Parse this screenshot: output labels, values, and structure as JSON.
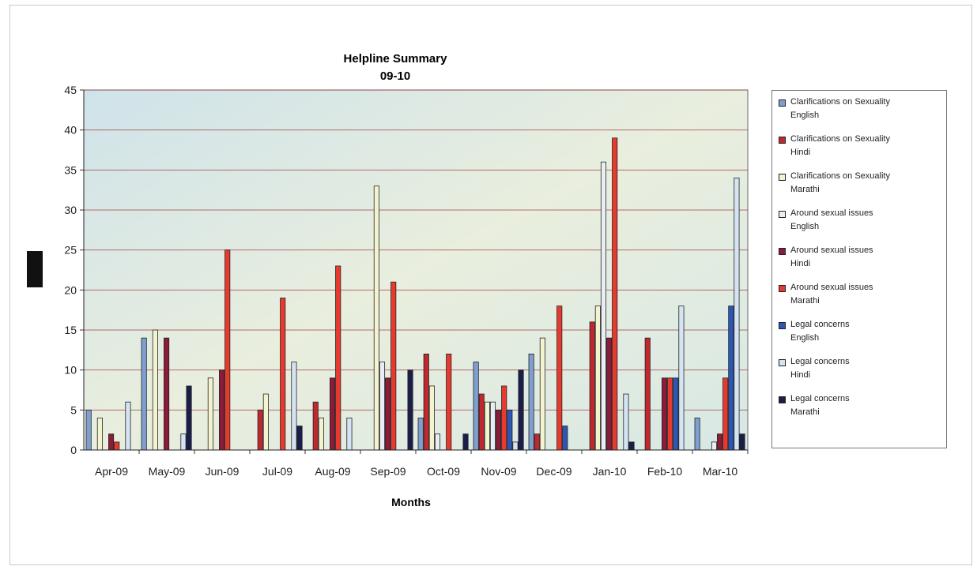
{
  "chart_data": {
    "type": "bar",
    "title": "Helpline Summary",
    "subtitle": "09-10",
    "xlabel": "Months",
    "ylabel": "",
    "ylim": [
      0,
      45
    ],
    "yticks": [
      0,
      5,
      10,
      15,
      20,
      25,
      30,
      35,
      40,
      45
    ],
    "grid": true,
    "legend_position": "right",
    "categories": [
      "Apr-09",
      "May-09",
      "Jun-09",
      "Jul-09",
      "Aug-09",
      "Sep-09",
      "Oct-09",
      "Nov-09",
      "Dec-09",
      "Jan-10",
      "Feb-10",
      "Mar-10"
    ],
    "series": [
      {
        "name": "Clarifications on Sexuality\nEnglish",
        "color": "#7f9fd0",
        "values": [
          5,
          14,
          0,
          0,
          0,
          0,
          4,
          11,
          12,
          0,
          0,
          4
        ]
      },
      {
        "name": "Clarifications on Sexuality\nHindi",
        "color": "#c0282e",
        "values": [
          0,
          0,
          0,
          5,
          6,
          0,
          12,
          7,
          2,
          16,
          14,
          0
        ]
      },
      {
        "name": "Clarifications on Sexuality\nMarathi",
        "color": "#f4f3d0",
        "values": [
          4,
          15,
          9,
          7,
          4,
          33,
          8,
          6,
          14,
          18,
          0,
          0
        ]
      },
      {
        "name": "Around sexual issues\nEnglish",
        "color": "#e8eef4",
        "values": [
          0,
          0,
          0,
          0,
          0,
          11,
          2,
          6,
          0,
          36,
          0,
          1
        ]
      },
      {
        "name": "Around sexual issues\nHindi",
        "color": "#8a1c3a",
        "values": [
          2,
          14,
          10,
          0,
          9,
          9,
          0,
          5,
          0,
          14,
          9,
          2
        ]
      },
      {
        "name": "Around sexual issues\nMarathi",
        "color": "#e63a2e",
        "values": [
          1,
          0,
          25,
          19,
          23,
          21,
          12,
          8,
          18,
          39,
          9,
          9
        ]
      },
      {
        "name": "Legal concerns\nEnglish",
        "color": "#2c57b5",
        "values": [
          0,
          0,
          0,
          0,
          0,
          0,
          0,
          5,
          3,
          0,
          9,
          18
        ]
      },
      {
        "name": "Legal concerns\nHindi",
        "color": "#d4e4f2",
        "values": [
          6,
          2,
          0,
          11,
          4,
          0,
          0,
          1,
          0,
          7,
          18,
          34
        ]
      },
      {
        "name": "Legal concerns\nMarathi",
        "color": "#1a1e4a",
        "values": [
          0,
          8,
          0,
          3,
          0,
          10,
          2,
          10,
          0,
          1,
          0,
          2
        ]
      }
    ]
  }
}
